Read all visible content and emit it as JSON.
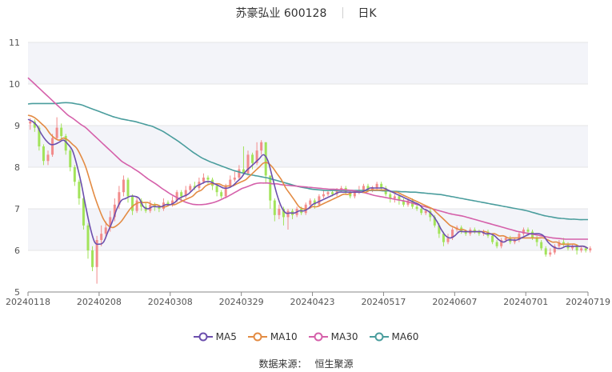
{
  "header": {
    "stock": "苏豪弘业 600128",
    "period": "日K"
  },
  "source": {
    "label": "数据来源：",
    "value": "恒生聚源"
  },
  "colors": {
    "up": "#f28b8b",
    "down": "#a2e35a",
    "ma5": "#6c4fad",
    "ma10": "#e38b43",
    "ma30": "#d560aa",
    "ma60": "#4a9d9d",
    "band": "#f3f4f9",
    "grid": "#e6e6e6"
  },
  "chart_data": {
    "type": "candlestick",
    "ylim": [
      5,
      11
    ],
    "yticks": [
      "5",
      "6",
      "7",
      "8",
      "9",
      "10",
      "11"
    ],
    "xlim": [
      0,
      126
    ],
    "xticks": [
      {
        "label": "20240118",
        "i": 0
      },
      {
        "label": "20240208",
        "i": 16
      },
      {
        "label": "20240308",
        "i": 32
      },
      {
        "label": "20240329",
        "i": 48
      },
      {
        "label": "20240423",
        "i": 64
      },
      {
        "label": "20240517",
        "i": 80
      },
      {
        "label": "20240607",
        "i": 96
      },
      {
        "label": "20240701",
        "i": 112
      },
      {
        "label": "20240719",
        "i": 126
      }
    ],
    "legend": [
      "MA5",
      "MA10",
      "MA30",
      "MA60"
    ],
    "candles": [
      [
        9.05,
        9.1,
        9.18,
        8.9
      ],
      [
        9.1,
        8.95,
        9.15,
        8.85
      ],
      [
        8.95,
        8.5,
        9.0,
        8.4
      ],
      [
        8.5,
        8.15,
        8.55,
        8.05
      ],
      [
        8.15,
        8.3,
        8.4,
        8.05
      ],
      [
        8.3,
        8.7,
        8.8,
        8.25
      ],
      [
        8.7,
        8.95,
        9.2,
        8.65
      ],
      [
        8.95,
        8.75,
        9.05,
        8.65
      ],
      [
        8.75,
        8.4,
        8.8,
        8.3
      ],
      [
        8.4,
        8.0,
        8.45,
        7.9
      ],
      [
        8.0,
        7.65,
        8.05,
        7.55
      ],
      [
        7.65,
        7.25,
        7.7,
        7.1
      ],
      [
        7.25,
        6.6,
        7.3,
        6.5
      ],
      [
        6.6,
        6.0,
        6.65,
        5.8
      ],
      [
        6.0,
        5.6,
        6.1,
        5.5
      ],
      [
        5.6,
        6.25,
        6.35,
        5.2
      ],
      [
        6.25,
        6.4,
        6.6,
        6.1
      ],
      [
        6.4,
        6.55,
        6.7,
        6.3
      ],
      [
        6.55,
        6.8,
        6.95,
        6.45
      ],
      [
        6.8,
        7.1,
        7.25,
        6.7
      ],
      [
        7.1,
        7.4,
        7.55,
        7.0
      ],
      [
        7.4,
        7.7,
        7.8,
        7.3
      ],
      [
        7.7,
        7.3,
        7.75,
        7.15
      ],
      [
        7.3,
        6.95,
        7.35,
        6.85
      ],
      [
        6.95,
        7.2,
        7.3,
        6.9
      ],
      [
        7.2,
        7.05,
        7.25,
        6.95
      ],
      [
        7.05,
        6.95,
        7.15,
        6.9
      ],
      [
        6.95,
        7.1,
        7.2,
        6.9
      ],
      [
        7.1,
        7.05,
        7.15,
        6.95
      ],
      [
        7.05,
        7.0,
        7.1,
        6.92
      ],
      [
        7.0,
        7.15,
        7.25,
        6.95
      ],
      [
        7.15,
        7.1,
        7.2,
        7.05
      ],
      [
        7.1,
        7.2,
        7.3,
        7.05
      ],
      [
        7.2,
        7.4,
        7.45,
        7.15
      ],
      [
        7.4,
        7.3,
        7.45,
        7.2
      ],
      [
        7.3,
        7.45,
        7.55,
        7.25
      ],
      [
        7.45,
        7.55,
        7.6,
        7.4
      ],
      [
        7.55,
        7.5,
        7.65,
        7.45
      ],
      [
        7.5,
        7.65,
        7.75,
        7.45
      ],
      [
        7.65,
        7.75,
        7.85,
        7.6
      ],
      [
        7.75,
        7.7,
        7.8,
        7.6
      ],
      [
        7.7,
        7.55,
        7.75,
        7.45
      ],
      [
        7.55,
        7.4,
        7.6,
        7.3
      ],
      [
        7.4,
        7.3,
        7.45,
        7.25
      ],
      [
        7.3,
        7.55,
        7.6,
        7.25
      ],
      [
        7.55,
        7.7,
        7.8,
        7.5
      ],
      [
        7.7,
        7.75,
        7.9,
        7.65
      ],
      [
        7.75,
        7.95,
        8.05,
        7.7
      ],
      [
        7.95,
        7.85,
        8.5,
        7.8
      ],
      [
        7.85,
        8.3,
        8.4,
        7.8
      ],
      [
        8.3,
        8.1,
        8.35,
        7.95
      ],
      [
        8.1,
        8.4,
        8.6,
        8.05
      ],
      [
        8.4,
        8.6,
        8.65,
        8.3
      ],
      [
        8.6,
        7.8,
        8.6,
        7.6
      ],
      [
        7.8,
        7.2,
        7.8,
        7.0
      ],
      [
        7.2,
        6.85,
        7.25,
        6.7
      ],
      [
        6.85,
        7.0,
        7.1,
        6.75
      ],
      [
        7.0,
        6.8,
        7.05,
        6.6
      ],
      [
        6.8,
        6.95,
        7.0,
        6.5
      ],
      [
        6.95,
        6.85,
        7.0,
        6.75
      ],
      [
        6.85,
        7.0,
        7.05,
        6.8
      ],
      [
        7.0,
        6.9,
        7.05,
        6.85
      ],
      [
        6.9,
        7.1,
        7.15,
        6.85
      ],
      [
        7.1,
        7.2,
        7.25,
        7.0
      ],
      [
        7.2,
        7.1,
        7.25,
        7.0
      ],
      [
        7.1,
        7.3,
        7.35,
        7.05
      ],
      [
        7.3,
        7.35,
        7.45,
        7.25
      ],
      [
        7.35,
        7.4,
        7.45,
        7.3
      ],
      [
        7.4,
        7.35,
        7.45,
        7.3
      ],
      [
        7.35,
        7.45,
        7.5,
        7.3
      ],
      [
        7.45,
        7.5,
        7.55,
        7.4
      ],
      [
        7.5,
        7.4,
        7.55,
        7.35
      ],
      [
        7.4,
        7.3,
        7.45,
        7.25
      ],
      [
        7.3,
        7.4,
        7.45,
        7.25
      ],
      [
        7.4,
        7.45,
        7.55,
        7.35
      ],
      [
        7.45,
        7.55,
        7.6,
        7.4
      ],
      [
        7.55,
        7.45,
        7.6,
        7.4
      ],
      [
        7.45,
        7.5,
        7.55,
        7.4
      ],
      [
        7.5,
        7.6,
        7.65,
        7.45
      ],
      [
        7.6,
        7.5,
        7.65,
        7.45
      ],
      [
        7.5,
        7.35,
        7.55,
        7.3
      ],
      [
        7.35,
        7.25,
        7.4,
        7.15
      ],
      [
        7.25,
        7.3,
        7.35,
        7.15
      ],
      [
        7.3,
        7.2,
        7.35,
        7.1
      ],
      [
        7.2,
        7.1,
        7.25,
        7.05
      ],
      [
        7.1,
        7.2,
        7.25,
        7.05
      ],
      [
        7.2,
        7.05,
        7.25,
        7.0
      ],
      [
        7.05,
        7.0,
        7.1,
        6.95
      ],
      [
        7.0,
        6.9,
        7.05,
        6.85
      ],
      [
        6.9,
        6.95,
        7.0,
        6.85
      ],
      [
        6.95,
        6.8,
        7.0,
        6.7
      ],
      [
        6.8,
        6.6,
        6.85,
        6.55
      ],
      [
        6.6,
        6.4,
        6.65,
        6.3
      ],
      [
        6.4,
        6.2,
        6.45,
        6.1
      ],
      [
        6.2,
        6.3,
        6.4,
        6.15
      ],
      [
        6.3,
        6.5,
        6.55,
        6.25
      ],
      [
        6.5,
        6.55,
        6.6,
        6.45
      ],
      [
        6.55,
        6.45,
        6.6,
        6.4
      ],
      [
        6.45,
        6.4,
        6.5,
        6.35
      ],
      [
        6.4,
        6.5,
        6.55,
        6.35
      ],
      [
        6.5,
        6.45,
        6.55,
        6.4
      ],
      [
        6.45,
        6.4,
        6.5,
        6.35
      ],
      [
        6.4,
        6.45,
        6.5,
        6.35
      ],
      [
        6.45,
        6.35,
        6.5,
        6.3
      ],
      [
        6.35,
        6.2,
        6.4,
        6.15
      ],
      [
        6.2,
        6.1,
        6.25,
        6.05
      ],
      [
        6.1,
        6.25,
        6.3,
        6.05
      ],
      [
        6.25,
        6.3,
        6.35,
        6.2
      ],
      [
        6.3,
        6.2,
        6.35,
        6.15
      ],
      [
        6.2,
        6.25,
        6.3,
        6.15
      ],
      [
        6.25,
        6.4,
        6.45,
        6.2
      ],
      [
        6.4,
        6.5,
        6.55,
        6.35
      ],
      [
        6.5,
        6.45,
        6.55,
        6.35
      ],
      [
        6.45,
        6.3,
        6.5,
        6.25
      ],
      [
        6.3,
        6.2,
        6.35,
        6.1
      ],
      [
        6.2,
        6.05,
        6.25,
        6.0
      ],
      [
        6.05,
        5.9,
        6.1,
        5.85
      ],
      [
        5.9,
        5.95,
        6.05,
        5.85
      ],
      [
        5.95,
        6.1,
        6.15,
        5.9
      ],
      [
        6.1,
        6.2,
        6.25,
        6.05
      ],
      [
        6.2,
        6.15,
        6.3,
        6.1
      ],
      [
        6.15,
        6.05,
        6.2,
        6.0
      ],
      [
        6.05,
        6.1,
        6.15,
        6.0
      ],
      [
        6.1,
        6.0,
        6.15,
        5.9
      ],
      [
        6.0,
        6.05,
        6.1,
        5.95
      ],
      [
        6.05,
        6.0,
        6.1,
        5.95
      ],
      [
        6.0,
        6.05,
        6.1,
        5.95
      ]
    ],
    "ma5": [
      9.15,
      9.1,
      9.0,
      8.8,
      8.65,
      8.55,
      8.55,
      8.6,
      8.65,
      8.55,
      8.4,
      8.05,
      7.6,
      7.05,
      6.55,
      6.2,
      6.15,
      6.2,
      6.45,
      6.7,
      7.0,
      7.2,
      7.25,
      7.3,
      7.3,
      7.25,
      7.05,
      7.0,
      7.05,
      7.05,
      7.05,
      7.1,
      7.1,
      7.15,
      7.25,
      7.3,
      7.35,
      7.45,
      7.55,
      7.6,
      7.65,
      7.65,
      7.6,
      7.55,
      7.5,
      7.5,
      7.55,
      7.65,
      7.75,
      7.9,
      8.0,
      8.1,
      8.2,
      8.3,
      8.15,
      7.75,
      7.35,
      7.05,
      6.9,
      6.9,
      6.9,
      6.95,
      6.95,
      7.0,
      7.1,
      7.15,
      7.2,
      7.25,
      7.3,
      7.35,
      7.4,
      7.4,
      7.4,
      7.4,
      7.4,
      7.4,
      7.45,
      7.5,
      7.5,
      7.5,
      7.5,
      7.45,
      7.4,
      7.35,
      7.3,
      7.25,
      7.2,
      7.15,
      7.1,
      7.0,
      6.95,
      6.85,
      6.7,
      6.5,
      6.35,
      6.3,
      6.35,
      6.45,
      6.45,
      6.45,
      6.45,
      6.45,
      6.45,
      6.4,
      6.4,
      6.35,
      6.25,
      6.2,
      6.25,
      6.25,
      6.25,
      6.3,
      6.35,
      6.4,
      6.4,
      6.4,
      6.35,
      6.2,
      6.1,
      6.05,
      6.05,
      6.1,
      6.1,
      6.1,
      6.1,
      6.1,
      6.05
    ],
    "ma10": [
      9.25,
      9.22,
      9.15,
      9.05,
      8.95,
      8.8,
      8.7,
      8.65,
      8.7,
      8.65,
      8.55,
      8.45,
      8.25,
      8.0,
      7.65,
      7.3,
      7.0,
      6.75,
      6.6,
      6.55,
      6.6,
      6.7,
      6.85,
      7.0,
      7.1,
      7.15,
      7.15,
      7.15,
      7.1,
      7.1,
      7.05,
      7.05,
      7.1,
      7.1,
      7.15,
      7.2,
      7.25,
      7.3,
      7.4,
      7.45,
      7.55,
      7.6,
      7.6,
      7.6,
      7.55,
      7.55,
      7.55,
      7.6,
      7.65,
      7.7,
      7.8,
      7.9,
      8.0,
      8.1,
      8.1,
      8.0,
      7.85,
      7.7,
      7.5,
      7.35,
      7.2,
      7.05,
      7.0,
      7.0,
      7.05,
      7.05,
      7.1,
      7.15,
      7.2,
      7.25,
      7.3,
      7.35,
      7.35,
      7.4,
      7.4,
      7.4,
      7.4,
      7.45,
      7.45,
      7.45,
      7.45,
      7.45,
      7.4,
      7.4,
      7.35,
      7.3,
      7.25,
      7.2,
      7.15,
      7.1,
      7.05,
      7.0,
      6.9,
      6.8,
      6.7,
      6.6,
      6.55,
      6.5,
      6.5,
      6.45,
      6.45,
      6.45,
      6.45,
      6.45,
      6.4,
      6.4,
      6.35,
      6.35,
      6.3,
      6.3,
      6.3,
      6.3,
      6.3,
      6.3,
      6.3,
      6.3,
      6.3,
      6.25,
      6.2,
      6.2,
      6.15,
      6.15,
      6.15,
      6.15,
      6.1,
      6.1,
      6.05
    ],
    "ma30": [
      10.15,
      10.05,
      9.95,
      9.85,
      9.75,
      9.65,
      9.55,
      9.45,
      9.35,
      9.25,
      9.18,
      9.1,
      9.02,
      8.95,
      8.85,
      8.75,
      8.65,
      8.55,
      8.45,
      8.35,
      8.25,
      8.15,
      8.08,
      8.02,
      7.95,
      7.88,
      7.8,
      7.72,
      7.65,
      7.58,
      7.5,
      7.43,
      7.36,
      7.3,
      7.24,
      7.18,
      7.14,
      7.11,
      7.1,
      7.1,
      7.11,
      7.13,
      7.16,
      7.2,
      7.25,
      7.3,
      7.36,
      7.42,
      7.48,
      7.52,
      7.56,
      7.6,
      7.62,
      7.62,
      7.62,
      7.6,
      7.6,
      7.58,
      7.57,
      7.56,
      7.55,
      7.54,
      7.53,
      7.52,
      7.51,
      7.5,
      7.49,
      7.48,
      7.47,
      7.47,
      7.46,
      7.46,
      7.45,
      7.44,
      7.42,
      7.4,
      7.38,
      7.35,
      7.32,
      7.3,
      7.28,
      7.26,
      7.24,
      7.22,
      7.2,
      7.18,
      7.15,
      7.12,
      7.09,
      7.06,
      7.03,
      7.0,
      6.97,
      6.94,
      6.91,
      6.88,
      6.86,
      6.84,
      6.82,
      6.79,
      6.76,
      6.73,
      6.7,
      6.67,
      6.64,
      6.61,
      6.58,
      6.55,
      6.52,
      6.49,
      6.46,
      6.44,
      6.42,
      6.4,
      6.38,
      6.36,
      6.34,
      6.32,
      6.3,
      6.29,
      6.28,
      6.27,
      6.27,
      6.27,
      6.27,
      6.27,
      6.27
    ],
    "ma60": [
      9.52,
      9.53,
      9.53,
      9.53,
      9.53,
      9.53,
      9.53,
      9.54,
      9.55,
      9.55,
      9.54,
      9.52,
      9.5,
      9.46,
      9.42,
      9.38,
      9.34,
      9.3,
      9.26,
      9.22,
      9.19,
      9.16,
      9.14,
      9.12,
      9.1,
      9.07,
      9.04,
      9.01,
      8.98,
      8.93,
      8.88,
      8.82,
      8.75,
      8.68,
      8.61,
      8.53,
      8.45,
      8.37,
      8.3,
      8.23,
      8.18,
      8.13,
      8.09,
      8.05,
      8.01,
      7.97,
      7.93,
      7.9,
      7.87,
      7.84,
      7.82,
      7.8,
      7.78,
      7.76,
      7.74,
      7.71,
      7.68,
      7.65,
      7.62,
      7.59,
      7.56,
      7.53,
      7.51,
      7.49,
      7.47,
      7.46,
      7.45,
      7.44,
      7.44,
      7.44,
      7.44,
      7.44,
      7.44,
      7.44,
      7.44,
      7.44,
      7.44,
      7.44,
      7.44,
      7.44,
      7.43,
      7.43,
      7.42,
      7.42,
      7.41,
      7.41,
      7.4,
      7.4,
      7.39,
      7.38,
      7.37,
      7.36,
      7.35,
      7.34,
      7.32,
      7.3,
      7.28,
      7.26,
      7.24,
      7.22,
      7.2,
      7.18,
      7.16,
      7.14,
      7.12,
      7.1,
      7.08,
      7.06,
      7.04,
      7.02,
      7.0,
      6.98,
      6.96,
      6.93,
      6.9,
      6.87,
      6.84,
      6.82,
      6.8,
      6.78,
      6.77,
      6.76,
      6.75,
      6.75,
      6.74,
      6.74,
      6.74
    ]
  }
}
